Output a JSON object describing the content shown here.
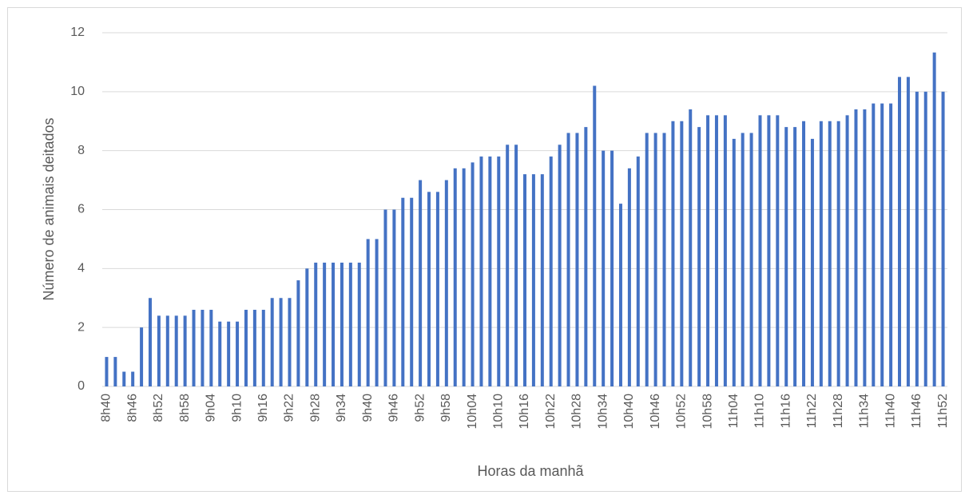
{
  "chart_data": {
    "type": "bar",
    "xlabel": "Horas da manhã",
    "ylabel": "Número de animais deitados",
    "categories": [
      "8h40",
      null,
      null,
      "8h46",
      null,
      null,
      "8h52",
      null,
      null,
      "8h58",
      null,
      null,
      "9h04",
      null,
      null,
      "9h10",
      null,
      null,
      "9h16",
      null,
      null,
      "9h22",
      null,
      null,
      "9h28",
      null,
      null,
      "9h34",
      null,
      null,
      "9h40",
      null,
      null,
      "9h46",
      null,
      null,
      "9h52",
      null,
      null,
      "9h58",
      null,
      null,
      "10h04",
      null,
      null,
      "10h10",
      null,
      null,
      "10h16",
      null,
      null,
      "10h22",
      null,
      null,
      "10h28",
      null,
      null,
      "10h34",
      null,
      null,
      "10h40",
      null,
      null,
      "10h46",
      null,
      null,
      "10h52",
      null,
      null,
      "10h58",
      null,
      null,
      "11h04",
      null,
      null,
      "11h10",
      null,
      null,
      "11h16",
      null,
      null,
      "11h22",
      null,
      null,
      "11h28",
      null,
      null,
      "11h34",
      null,
      null,
      "11h40",
      null,
      null,
      "11h46",
      null,
      null,
      "11h52"
    ],
    "values": [
      1,
      1,
      0.5,
      0.5,
      2,
      3,
      2.4,
      2.4,
      2.4,
      2.4,
      2.6,
      2.6,
      2.6,
      2.2,
      2.2,
      2.2,
      2.6,
      2.6,
      2.6,
      3,
      3,
      3,
      3.6,
      4,
      4.2,
      4.2,
      4.2,
      4.2,
      4.2,
      4.2,
      5,
      5,
      6,
      6,
      6.4,
      6.4,
      7,
      6.6,
      6.6,
      7,
      7.4,
      7.4,
      7.6,
      7.8,
      7.8,
      7.8,
      8.2,
      8.2,
      7.2,
      7.2,
      7.2,
      7.8,
      8.2,
      8.6,
      8.6,
      8.8,
      10.2,
      8,
      8,
      6.2,
      7.4,
      7.8,
      8.6,
      8.6,
      8.6,
      9,
      9,
      9.4,
      8.8,
      9.2,
      9.2,
      9.2,
      8.4,
      8.6,
      8.6,
      9.2,
      9.2,
      9.2,
      8.8,
      8.8,
      9,
      8.4,
      9,
      9,
      9,
      9.2,
      9.4,
      9.4,
      9.6,
      9.6,
      9.6,
      10.5,
      10.5,
      10,
      10,
      11.33,
      10
    ],
    "color": "#4472c4",
    "ylim": [
      0,
      12
    ],
    "yticks": [
      0,
      2,
      4,
      6,
      8,
      10,
      12
    ],
    "grid": true
  }
}
